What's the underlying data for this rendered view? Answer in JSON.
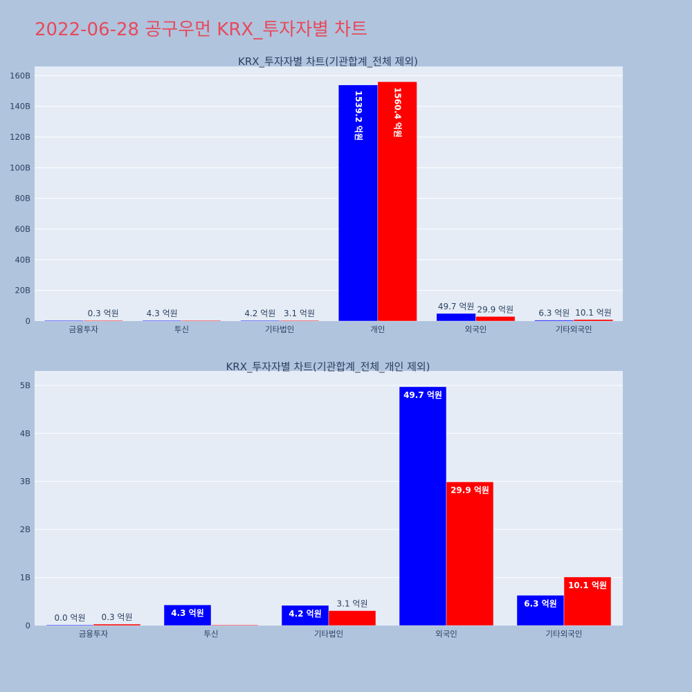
{
  "page": {
    "title": "2022-06-28 공구우먼 KRX_투자자별 차트"
  },
  "colors": {
    "background": "#b0c4de",
    "plot_bg": "#e5ecf6",
    "series_a": "#0000ff",
    "series_b": "#ff0000",
    "title": "#e8495b",
    "text": "#2a3f5f"
  },
  "chart_data": [
    {
      "type": "bar",
      "title": "KRX_투자자별 차트(기관합계_전체 제외)",
      "categories": [
        "금융투자",
        "투신",
        "기타법인",
        "개인",
        "외국인",
        "기타외국인"
      ],
      "ylim": [
        0,
        166000000000
      ],
      "yticks": [
        0,
        20000000000,
        40000000000,
        60000000000,
        80000000000,
        100000000000,
        120000000000,
        140000000000,
        160000000000
      ],
      "ytick_labels": [
        "0",
        "20B",
        "40B",
        "60B",
        "80B",
        "100B",
        "120B",
        "140B",
        "160B"
      ],
      "grid": true,
      "series": [
        {
          "color": "#0000ff",
          "values": [
            0,
            430000000,
            420000000,
            153920000000,
            4970000000,
            630000000
          ],
          "labels": [
            "",
            "4.3 억원",
            "4.2 억원",
            "1539.2 억원",
            "49.7 억원",
            "6.3 억원"
          ]
        },
        {
          "color": "#ff0000",
          "values": [
            30000000,
            0,
            310000000,
            156040000000,
            2990000000,
            1010000000
          ],
          "labels": [
            "0.3 억원",
            "",
            "3.1 억원",
            "1560.4 억원",
            "29.9 억원",
            "10.1 억원"
          ]
        }
      ]
    },
    {
      "type": "bar",
      "title": "KRX_투자자별 차트(기관합계_전체_개인 제외)",
      "categories": [
        "금융투자",
        "투신",
        "기타법인",
        "외국인",
        "기타외국인"
      ],
      "ylim": [
        0,
        5300000000
      ],
      "yticks": [
        0,
        1000000000,
        2000000000,
        3000000000,
        4000000000,
        5000000000
      ],
      "ytick_labels": [
        "0",
        "1B",
        "2B",
        "3B",
        "4B",
        "5B"
      ],
      "grid": true,
      "series": [
        {
          "color": "#0000ff",
          "values": [
            0,
            430000000,
            420000000,
            4970000000,
            630000000
          ],
          "labels": [
            "0.0 억원",
            "4.3 억원",
            "4.2 억원",
            "49.7 억원",
            "6.3 억원"
          ]
        },
        {
          "color": "#ff0000",
          "values": [
            30000000,
            0,
            310000000,
            2990000000,
            1010000000
          ],
          "labels": [
            "0.3 억원",
            "",
            "3.1 억원",
            "29.9 억원",
            "10.1 억원"
          ]
        }
      ]
    }
  ]
}
